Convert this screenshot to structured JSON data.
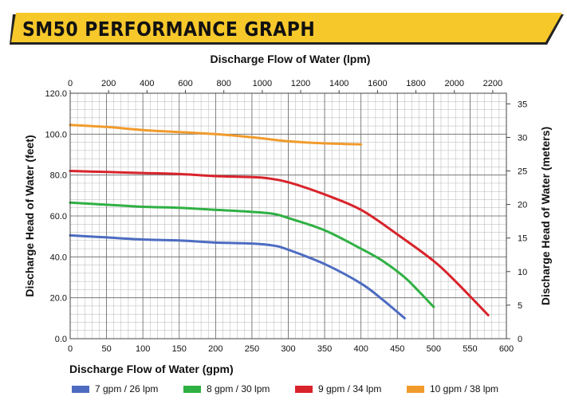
{
  "title": "SM50 PERFORMANCE GRAPH",
  "colors": {
    "banner": "#f6c82a",
    "banner_dark": "#222222",
    "grid": "#b5b5b5",
    "frame": "#444444"
  },
  "chart_data": {
    "type": "line",
    "title": "SM50 PERFORMANCE GRAPH",
    "xlabel": "Discharge Flow of Water (gpm)",
    "x2label": "Discharge Flow of Water (lpm)",
    "ylabel": "Discharge Head of Water (feet)",
    "y2label": "Discharge Head of Water (meters)",
    "xlim": [
      0,
      600
    ],
    "ylim": [
      0,
      120
    ],
    "x2lim": [
      0,
      2271
    ],
    "y2lim": [
      0,
      36.58
    ],
    "xticks": [
      "0",
      "50",
      "100",
      "150",
      "200",
      "250",
      "300",
      "350",
      "400",
      "450",
      "500",
      "550",
      "600"
    ],
    "yticks": [
      "0.0",
      "20.0",
      "40.0",
      "60.0",
      "80.0",
      "100.0",
      "120.0"
    ],
    "x2ticks": [
      "0",
      "200",
      "400",
      "600",
      "800",
      "1000",
      "1200",
      "1400",
      "1600",
      "1800",
      "2000",
      "2200"
    ],
    "y2ticks": [
      "0",
      "5",
      "10",
      "15",
      "20",
      "25",
      "30",
      "35"
    ],
    "grid": true,
    "legend": "bottom",
    "series": [
      {
        "name": "7 gpm / 26 lpm",
        "color": "#4d6cc1",
        "x": [
          0,
          50,
          100,
          150,
          200,
          250,
          280,
          300,
          350,
          400,
          430,
          460
        ],
        "y": [
          50.5,
          49.5,
          48.5,
          48,
          47,
          46.5,
          45.5,
          43.5,
          36.5,
          27,
          19,
          10
        ]
      },
      {
        "name": "8 gpm / 30 lpm",
        "color": "#2fb043",
        "x": [
          0,
          50,
          100,
          150,
          200,
          250,
          280,
          300,
          350,
          400,
          430,
          460,
          480,
          500
        ],
        "y": [
          66.5,
          65.5,
          64.5,
          64,
          63,
          62,
          61,
          59,
          53,
          44,
          38,
          30,
          23,
          15.5
        ]
      },
      {
        "name": "9 gpm / 34 lpm",
        "color": "#d8232a",
        "x": [
          0,
          50,
          100,
          150,
          200,
          250,
          270,
          300,
          350,
          400,
          450,
          500,
          530,
          575
        ],
        "y": [
          82,
          81.5,
          81,
          80.5,
          79.5,
          79,
          78.5,
          76.5,
          70.5,
          63,
          51,
          38,
          28,
          11.5
        ]
      },
      {
        "name": "10 gpm / 38 lpm",
        "color": "#f19b2c",
        "x": [
          0,
          50,
          100,
          150,
          200,
          250,
          300,
          350,
          400
        ],
        "y": [
          104.5,
          103.5,
          102,
          101,
          100,
          98.5,
          96.5,
          95.5,
          95
        ]
      }
    ]
  }
}
